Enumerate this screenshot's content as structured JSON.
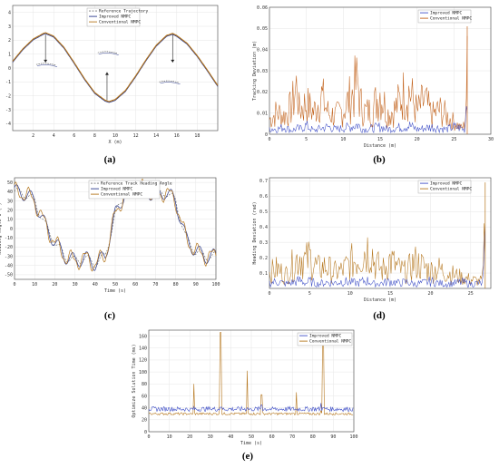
{
  "captions": [
    "(a)",
    "(b)",
    "(c)",
    "(d)",
    "(e)"
  ],
  "chart_data": [
    {
      "type": "line",
      "xlabel": "X (m)",
      "ylabel": "Y (m)",
      "xlim": [
        0,
        20
      ],
      "ylim": [
        -4.5,
        4.5
      ],
      "xticks": [
        "2",
        "4",
        "6",
        "8",
        "10",
        "12",
        "14",
        "16",
        "18"
      ],
      "yticks": [
        "-4",
        "-3",
        "-2",
        "-1",
        "0",
        "1",
        "2",
        "3",
        "4"
      ],
      "grid": true,
      "legend": "top-center",
      "series": [
        {
          "name": "Reference Trajectory",
          "color": "#777777",
          "dash": "2,1.5"
        },
        {
          "name": "Improved NMPC",
          "color": "#2b3a8c"
        },
        {
          "name": "Conventional NMPC",
          "color": "#b5761d"
        }
      ],
      "x": [
        0,
        1,
        2,
        3,
        3.2,
        4,
        5,
        6,
        7,
        8,
        9,
        9.4,
        10,
        11,
        12,
        13,
        14,
        15,
        15.6,
        16,
        17,
        18,
        19,
        20
      ],
      "values": [
        0.45,
        1.35,
        2.05,
        2.45,
        2.5,
        2.25,
        1.45,
        0.35,
        -0.8,
        -1.8,
        -2.35,
        -2.45,
        -2.3,
        -1.65,
        -0.6,
        0.55,
        1.6,
        2.3,
        2.45,
        2.3,
        1.75,
        0.85,
        -0.2,
        -1.3
      ]
    },
    {
      "type": "line",
      "xlabel": "Distance (m)",
      "ylabel": "Tracking Deviation (m)",
      "xlim": [
        0,
        30
      ],
      "ylim": [
        0,
        0.06
      ],
      "xticks": [
        "0",
        "5",
        "10",
        "15",
        "20",
        "25",
        "30"
      ],
      "yticks": [
        "0",
        "0.01",
        "0.02",
        "0.03",
        "0.04",
        "0.05",
        "0.06"
      ],
      "grid": true,
      "legend": "top-right",
      "series": [
        {
          "name": "Improved NMPC",
          "color": "#3f4fc7"
        },
        {
          "name": "Conventional NMPC",
          "color": "#c2611a"
        }
      ],
      "x": [
        0,
        1,
        2,
        3,
        3.8,
        4,
        5,
        6,
        7,
        8,
        9,
        10,
        11,
        12,
        12.3,
        13,
        14,
        15,
        16,
        17,
        18,
        19,
        20,
        21,
        22,
        23,
        24,
        25,
        26,
        26.5,
        26.8
      ],
      "improved": [
        0.005,
        0.004,
        0.006,
        0.003,
        0.005,
        0.004,
        0.007,
        0.003,
        0.005,
        0.006,
        0.004,
        0.005,
        0.006,
        0.008,
        0.005,
        0.004,
        0.005,
        0.006,
        0.004,
        0.005,
        0.006,
        0.007,
        0.004,
        0.005,
        0.006,
        0.005,
        0.004,
        0.006,
        0.005,
        0.003,
        0.045
      ],
      "conventional": [
        0.012,
        0.018,
        0.015,
        0.022,
        0.042,
        0.02,
        0.025,
        0.018,
        0.032,
        0.017,
        0.015,
        0.02,
        0.03,
        0.043,
        0.025,
        0.018,
        0.02,
        0.035,
        0.017,
        0.02,
        0.032,
        0.035,
        0.018,
        0.028,
        0.015,
        0.02,
        0.015,
        0.01,
        0.005,
        0.008,
        0.051
      ]
    },
    {
      "type": "line",
      "xlabel": "Time (s)",
      "ylabel": "Heading Angle θ (°)",
      "xlim": [
        0,
        100
      ],
      "ylim": [
        -55,
        55
      ],
      "xticks": [
        "0",
        "10",
        "20",
        "30",
        "40",
        "50",
        "60",
        "70",
        "80",
        "90",
        "100"
      ],
      "yticks": [
        "-50",
        "-40",
        "-30",
        "-20",
        "-10",
        "0",
        "10",
        "20",
        "30",
        "40",
        "50"
      ],
      "grid": true,
      "legend": "top-center",
      "series": [
        {
          "name": "Reference Track Heading Angle",
          "color": "#777777",
          "dash": "2,1.5"
        },
        {
          "name": "Improved NMPC",
          "color": "#2b3a8c"
        },
        {
          "name": "Conventional NMPC",
          "color": "#b5761d"
        }
      ],
      "x": [
        0,
        5,
        10,
        15,
        20,
        25,
        30,
        35,
        40,
        45,
        50,
        55,
        60,
        65,
        70,
        75,
        80,
        85,
        90,
        95,
        100
      ],
      "values": [
        40,
        38,
        30,
        5,
        -15,
        -30,
        -35,
        -32,
        -38,
        -30,
        15,
        40,
        45,
        42,
        35,
        40,
        30,
        -10,
        -25,
        -30,
        -30
      ]
    },
    {
      "type": "line",
      "xlabel": "Distance (m)",
      "ylabel": "Heading Deviation (rad)",
      "xlim": [
        0,
        27.5
      ],
      "ylim": [
        0,
        0.72
      ],
      "xticks": [
        "0",
        "5",
        "10",
        "15",
        "20",
        "25"
      ],
      "yticks": [
        "0.1",
        "0.2",
        "0.3",
        "0.4",
        "0.5",
        "0.6",
        "0.7"
      ],
      "grid": true,
      "legend": "top-right",
      "series": [
        {
          "name": "Improved NMPC",
          "color": "#3f4fc7"
        },
        {
          "name": "Conventional NMPC",
          "color": "#b5761d"
        }
      ],
      "x": [
        0,
        1,
        2,
        3,
        3.8,
        4.5,
        5,
        6,
        7,
        8,
        9,
        10,
        11,
        12,
        12.6,
        13,
        14,
        15,
        16,
        17,
        18,
        19,
        20,
        21,
        22,
        23,
        24,
        25,
        26,
        26.5,
        26.8
      ],
      "improved": [
        0.06,
        0.08,
        0.05,
        0.07,
        0.09,
        0.06,
        0.08,
        0.05,
        0.07,
        0.06,
        0.08,
        0.07,
        0.06,
        0.09,
        0.07,
        0.05,
        0.06,
        0.08,
        0.06,
        0.07,
        0.05,
        0.06,
        0.08,
        0.06,
        0.05,
        0.06,
        0.07,
        0.05,
        0.06,
        0.05,
        0.43
      ],
      "conventional": [
        0.18,
        0.22,
        0.15,
        0.28,
        0.38,
        0.3,
        0.35,
        0.22,
        0.25,
        0.18,
        0.2,
        0.28,
        0.35,
        0.44,
        0.48,
        0.3,
        0.2,
        0.32,
        0.22,
        0.18,
        0.3,
        0.25,
        0.2,
        0.22,
        0.18,
        0.15,
        0.12,
        0.1,
        0.08,
        0.1,
        0.69
      ]
    },
    {
      "type": "line",
      "xlabel": "Time (s)",
      "ylabel": "Optimize Solution Time (ms)",
      "xlim": [
        0,
        100
      ],
      "ylim": [
        0,
        170
      ],
      "xticks": [
        "0",
        "10",
        "20",
        "30",
        "40",
        "50",
        "60",
        "70",
        "80",
        "90",
        "100"
      ],
      "yticks": [
        "0",
        "20",
        "40",
        "60",
        "80",
        "100",
        "120",
        "140",
        "160"
      ],
      "grid": true,
      "legend": "top-right",
      "series": [
        {
          "name": "Improved NMPC",
          "color": "#3f4fc7"
        },
        {
          "name": "Conventional NMPC",
          "color": "#b5761d"
        }
      ],
      "x": [
        0,
        10,
        20,
        22,
        30,
        35,
        40,
        48,
        50,
        55,
        60,
        70,
        72,
        80,
        84,
        85,
        90,
        100
      ],
      "improved": [
        38,
        40,
        37,
        42,
        38,
        41,
        39,
        40,
        38,
        45,
        39,
        40,
        37,
        41,
        48,
        40,
        38,
        39
      ],
      "conventional": [
        30,
        31,
        30,
        80,
        30,
        166,
        31,
        102,
        30,
        62,
        31,
        30,
        66,
        31,
        35,
        157,
        30,
        31
      ]
    }
  ]
}
